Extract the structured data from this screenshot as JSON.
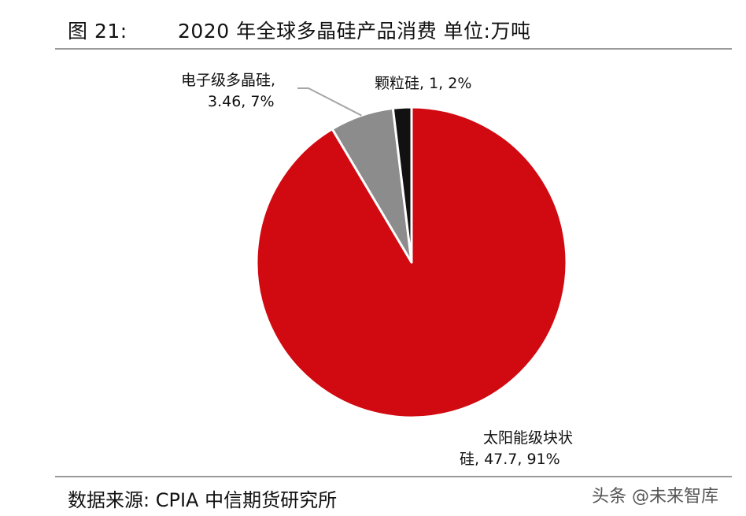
{
  "header": {
    "figure_label": "图 21:",
    "title": "2020 年全球多晶硅产品消费 单位:万吨"
  },
  "footer": {
    "source": "数据来源: CPIA 中信期货研究所",
    "watermark": "头条 @未来智库"
  },
  "chart_data": {
    "type": "pie",
    "title": "2020 年全球多晶硅产品消费 单位:万吨",
    "unit": "万吨",
    "slices": [
      {
        "category_line1": "太阳能级块状",
        "category_line2": "硅",
        "value": 47.7,
        "percent": 91,
        "color": "#d10a12",
        "label_line1": "太阳能级块状",
        "label_line2": "硅, 47.7, 91%"
      },
      {
        "category_line1": "电子级多晶硅",
        "category_line2": "",
        "value": 3.46,
        "percent": 7,
        "color": "#8c8c8c",
        "label_line1": "电子级多晶硅,",
        "label_line2": "3.46, 7%"
      },
      {
        "category_line1": "颗粒硅",
        "category_line2": "",
        "value": 1,
        "percent": 2,
        "color": "#111111",
        "label_line1": "颗粒硅, 1, 2%",
        "label_line2": ""
      }
    ],
    "start_angle_deg": 0,
    "direction": "clockwise"
  }
}
